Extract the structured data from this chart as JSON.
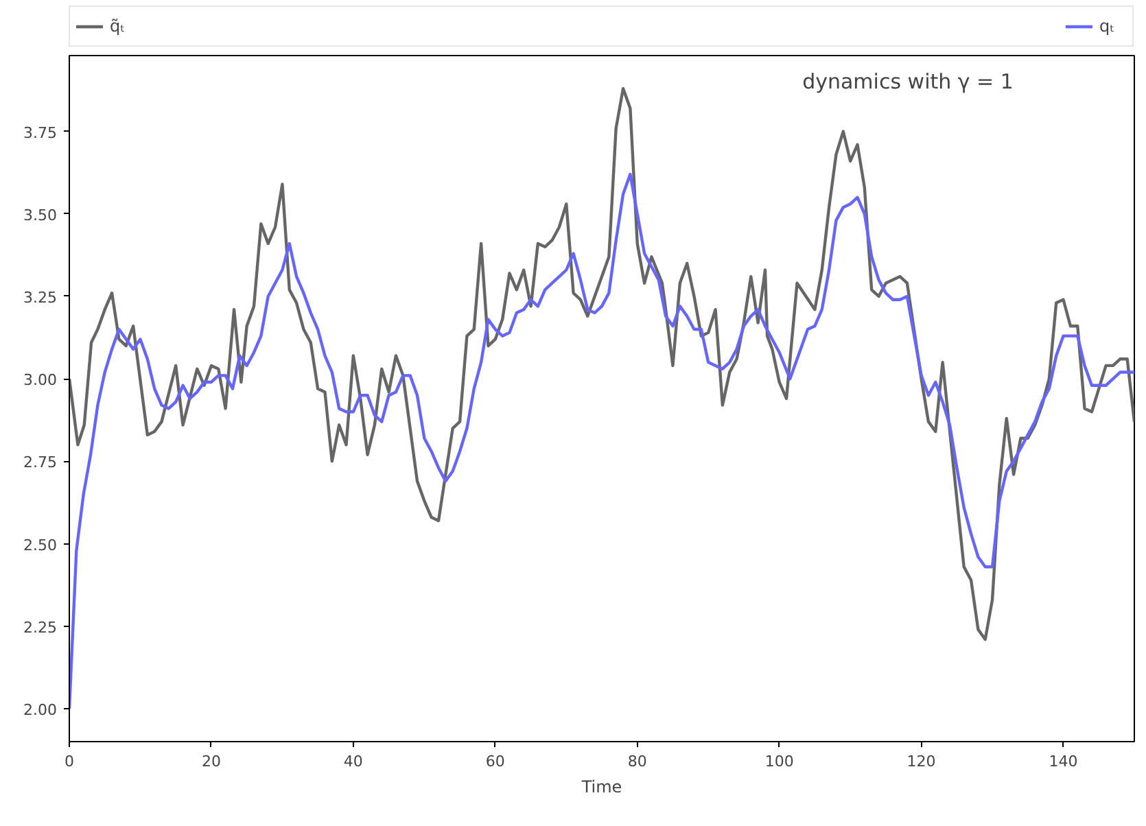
{
  "chart_data": {
    "type": "line",
    "xlabel": "Time",
    "annotations": [
      "dynamics with γ = 1"
    ],
    "xlim": [
      0,
      150
    ],
    "ylim": [
      1.9,
      3.98
    ],
    "xticks": [
      0,
      20,
      40,
      60,
      80,
      100,
      120,
      140
    ],
    "yticks": [
      {
        "value": 2.0,
        "label": "2.00"
      },
      {
        "value": 2.25,
        "label": "2.25"
      },
      {
        "value": 2.5,
        "label": "2.50"
      },
      {
        "value": 2.75,
        "label": "2.75"
      },
      {
        "value": 3.0,
        "label": "3.00"
      },
      {
        "value": 3.25,
        "label": "3.25"
      },
      {
        "value": 3.5,
        "label": "3.50"
      },
      {
        "value": 3.75,
        "label": "3.75"
      }
    ],
    "grid": false,
    "legend": "top",
    "line_style": "solid",
    "marker": "none",
    "series": [
      {
        "name": "q̃ₜ",
        "color": "#666666",
        "x": [
          0,
          1.2,
          2.1,
          3.1,
          4,
          5,
          6,
          7,
          8,
          9,
          11,
          12,
          13,
          15,
          16,
          18,
          19,
          20,
          21,
          22,
          23.2,
          24.2,
          25,
          26,
          27,
          28,
          29,
          30,
          31,
          32,
          33,
          34,
          35,
          36,
          37,
          38,
          39,
          40,
          41,
          42,
          43,
          44,
          45,
          46,
          47,
          49,
          50,
          51,
          52,
          54,
          55,
          56,
          57,
          58,
          59,
          60,
          61,
          62,
          63,
          64,
          65,
          66,
          67,
          68,
          69,
          70,
          71,
          72,
          73,
          76,
          77,
          78,
          79,
          80,
          81,
          82,
          83.5,
          84,
          85,
          86,
          87,
          88,
          89,
          90,
          91,
          92,
          93,
          94,
          95,
          96,
          97,
          98,
          98.3,
          99,
          100,
          101,
          102.5,
          105,
          106,
          107,
          108,
          109,
          110,
          111,
          112,
          113,
          114,
          115,
          117,
          118,
          120,
          121,
          122,
          123,
          126,
          127,
          128,
          129,
          130,
          131,
          132,
          133,
          134,
          135,
          136,
          137,
          138,
          139,
          140,
          141,
          142,
          143,
          144,
          145,
          146,
          147,
          148,
          149,
          150
        ],
        "values": [
          3.0,
          2.8,
          2.86,
          3.11,
          3.15,
          3.21,
          3.26,
          3.12,
          3.1,
          3.16,
          2.83,
          2.84,
          2.87,
          3.04,
          2.86,
          3.03,
          2.98,
          3.04,
          3.03,
          2.91,
          3.21,
          2.99,
          3.16,
          3.22,
          3.47,
          3.41,
          3.46,
          3.59,
          3.27,
          3.23,
          3.15,
          3.11,
          2.97,
          2.96,
          2.75,
          2.86,
          2.8,
          3.07,
          2.94,
          2.77,
          2.86,
          3.03,
          2.96,
          3.07,
          3.01,
          2.69,
          2.63,
          2.58,
          2.57,
          2.85,
          2.87,
          3.13,
          3.15,
          3.41,
          3.1,
          3.12,
          3.18,
          3.32,
          3.27,
          3.33,
          3.22,
          3.41,
          3.4,
          3.42,
          3.46,
          3.53,
          3.26,
          3.24,
          3.19,
          3.37,
          3.76,
          3.88,
          3.82,
          3.41,
          3.29,
          3.37,
          3.29,
          3.21,
          3.04,
          3.29,
          3.35,
          3.25,
          3.13,
          3.14,
          3.21,
          2.92,
          3.02,
          3.06,
          3.17,
          3.31,
          3.17,
          3.33,
          3.13,
          3.09,
          2.99,
          2.94,
          3.29,
          3.21,
          3.33,
          3.52,
          3.68,
          3.75,
          3.66,
          3.71,
          3.58,
          3.27,
          3.25,
          3.29,
          3.31,
          3.29,
          3.0,
          2.87,
          2.84,
          3.05,
          2.43,
          2.39,
          2.24,
          2.21,
          2.33,
          2.68,
          2.88,
          2.71,
          2.82,
          2.82,
          2.86,
          2.92,
          3.0,
          3.23,
          3.24,
          3.16,
          3.16,
          2.91,
          2.9,
          2.97,
          3.04,
          3.04,
          3.06,
          3.06,
          2.87
        ]
      },
      {
        "name": "qₜ",
        "color": "#6666ff",
        "x": [
          0,
          1,
          2,
          3,
          4,
          5,
          6,
          7,
          8,
          9,
          10,
          11,
          12,
          13,
          14,
          15,
          16,
          17,
          18,
          19,
          20,
          21,
          22,
          23,
          24,
          25,
          26,
          27,
          28,
          29,
          30,
          31,
          32,
          33,
          34,
          35,
          36,
          37,
          38,
          39,
          40,
          41,
          42,
          43,
          44,
          45,
          46,
          47,
          48,
          49,
          50,
          51,
          52,
          53,
          54,
          55,
          56,
          57,
          58,
          59,
          60,
          61,
          62,
          63,
          64,
          65,
          66,
          67,
          68,
          69,
          70,
          71,
          72,
          73,
          74,
          75,
          76,
          77,
          78,
          79,
          80,
          81,
          82,
          83,
          84,
          85,
          86,
          87,
          88,
          89,
          90,
          91,
          92,
          93,
          94,
          95,
          96,
          97,
          98,
          99,
          100,
          101.5,
          103,
          104,
          105,
          106,
          107,
          108,
          109,
          110,
          111,
          112,
          113,
          114,
          115,
          116,
          117,
          118,
          119,
          120,
          121,
          122,
          123,
          124,
          125,
          126,
          127,
          128,
          129,
          130,
          131,
          132,
          133,
          134,
          135,
          136,
          137,
          138,
          139,
          140,
          141,
          142,
          143,
          144,
          145,
          146,
          147,
          148,
          150
        ],
        "values": [
          2.0,
          2.48,
          2.65,
          2.77,
          2.92,
          3.02,
          3.09,
          3.15,
          3.12,
          3.09,
          3.12,
          3.06,
          2.97,
          2.92,
          2.91,
          2.93,
          2.98,
          2.94,
          2.96,
          2.99,
          2.99,
          3.01,
          3.01,
          2.97,
          3.07,
          3.04,
          3.08,
          3.13,
          3.25,
          3.29,
          3.33,
          3.41,
          3.31,
          3.26,
          3.2,
          3.15,
          3.07,
          3.02,
          2.91,
          2.9,
          2.9,
          2.95,
          2.95,
          2.89,
          2.87,
          2.95,
          2.96,
          3.01,
          3.01,
          2.95,
          2.82,
          2.78,
          2.73,
          2.69,
          2.72,
          2.78,
          2.85,
          2.97,
          3.05,
          3.18,
          3.15,
          3.13,
          3.14,
          3.2,
          3.21,
          3.24,
          3.22,
          3.27,
          3.29,
          3.31,
          3.33,
          3.38,
          3.3,
          3.21,
          3.2,
          3.22,
          3.26,
          3.42,
          3.56,
          3.62,
          3.5,
          3.38,
          3.34,
          3.3,
          3.19,
          3.16,
          3.22,
          3.19,
          3.15,
          3.15,
          3.05,
          3.04,
          3.03,
          3.05,
          3.09,
          3.16,
          3.19,
          3.21,
          3.16,
          3.12,
          3.08,
          3.0,
          3.09,
          3.15,
          3.16,
          3.21,
          3.33,
          3.48,
          3.52,
          3.53,
          3.55,
          3.5,
          3.37,
          3.3,
          3.26,
          3.24,
          3.24,
          3.25,
          3.13,
          3.01,
          2.95,
          2.99,
          2.93,
          2.86,
          2.73,
          2.61,
          2.53,
          2.46,
          2.43,
          2.43,
          2.63,
          2.72,
          2.75,
          2.79,
          2.83,
          2.87,
          2.93,
          2.97,
          3.07,
          3.13,
          3.13,
          3.13,
          3.04,
          2.98,
          2.98,
          2.98,
          3.0,
          3.02,
          3.02
        ]
      }
    ]
  }
}
